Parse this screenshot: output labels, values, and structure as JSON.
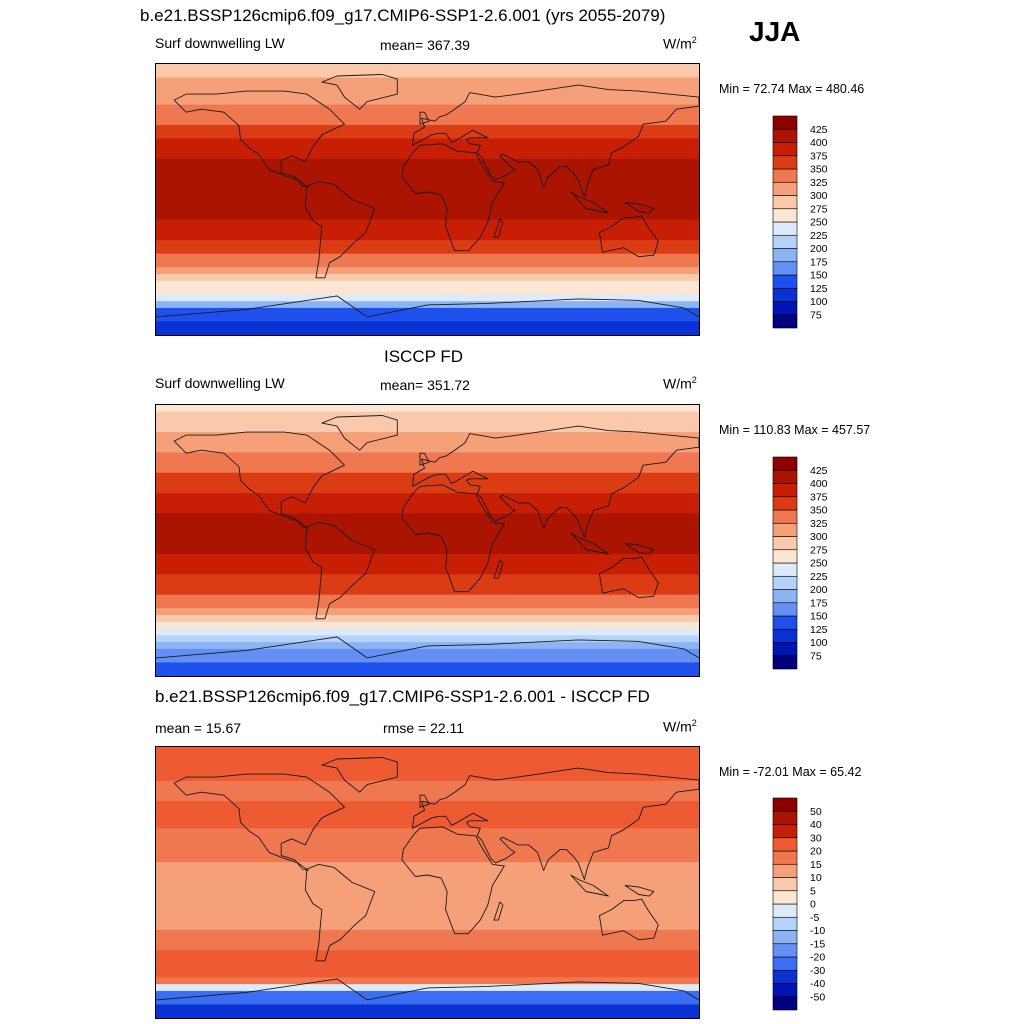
{
  "figure": {
    "title": "b.e21.BSSP126cmip6.f09_g17.CMIP6-SSP1-2.6.001 (yrs 2055-2079)",
    "season": "JJA"
  },
  "colors": {
    "abs_scale": [
      "#000080",
      "#0014b4",
      "#0a32d2",
      "#1e50eb",
      "#3c6ef5",
      "#6490f5",
      "#8cb4f5",
      "#b4d2fa",
      "#dceafa",
      "#fae6d2",
      "#fac8aa",
      "#f5a078",
      "#f07850",
      "#ee5a32",
      "#dc3c14",
      "#c81e05",
      "#aa1400",
      "#8c0000"
    ],
    "diff_scale": [
      "#000080",
      "#0014b4",
      "#0a32d2",
      "#1e50eb",
      "#3c6ef5",
      "#6490f5",
      "#8cb4f5",
      "#b4d2fa",
      "#dceafa",
      "#ffffff",
      "#fae6d2",
      "#fac8aa",
      "#f5a078",
      "#f07850",
      "#ee5a32",
      "#dc3c14",
      "#c81e05",
      "#aa1400",
      "#8c0000"
    ]
  },
  "chart_data": [
    {
      "type": "heatmap",
      "panel": "model",
      "variable": "Surf downwelling LW",
      "mean_label": "mean= 367.39",
      "units": "W/m",
      "units_sup": "2",
      "minmax_label": "Min =  72.74 Max = 480.46",
      "min": 72.74,
      "max": 480.46,
      "colorbar_levels": [
        75,
        100,
        125,
        150,
        175,
        200,
        225,
        250,
        275,
        300,
        325,
        350,
        375,
        400,
        425
      ],
      "zonal_profile": [
        {
          "lat": 90,
          "value": 290
        },
        {
          "lat": 75,
          "value": 310
        },
        {
          "lat": 60,
          "value": 330
        },
        {
          "lat": 45,
          "value": 360
        },
        {
          "lat": 30,
          "value": 395
        },
        {
          "lat": 15,
          "value": 425
        },
        {
          "lat": 0,
          "value": 420
        },
        {
          "lat": -15,
          "value": 395
        },
        {
          "lat": -30,
          "value": 370
        },
        {
          "lat": -45,
          "value": 330
        },
        {
          "lat": -55,
          "value": 280
        },
        {
          "lat": -65,
          "value": 230
        },
        {
          "lat": -75,
          "value": 140
        },
        {
          "lat": -90,
          "value": 100
        }
      ]
    },
    {
      "type": "heatmap",
      "panel": "obs",
      "panel_title": "ISCCP FD",
      "variable": "Surf downwelling LW",
      "mean_label": "mean= 351.72",
      "units": "W/m",
      "units_sup": "2",
      "minmax_label": "Min = 110.83 Max = 457.57",
      "min": 110.83,
      "max": 457.57,
      "colorbar_levels": [
        75,
        100,
        125,
        150,
        175,
        200,
        225,
        250,
        275,
        300,
        325,
        350,
        375,
        400,
        425
      ],
      "zonal_profile": [
        {
          "lat": 90,
          "value": 270
        },
        {
          "lat": 75,
          "value": 290
        },
        {
          "lat": 60,
          "value": 320
        },
        {
          "lat": 45,
          "value": 350
        },
        {
          "lat": 30,
          "value": 380
        },
        {
          "lat": 15,
          "value": 410
        },
        {
          "lat": 0,
          "value": 415
        },
        {
          "lat": -15,
          "value": 385
        },
        {
          "lat": -30,
          "value": 360
        },
        {
          "lat": -45,
          "value": 320
        },
        {
          "lat": -55,
          "value": 270
        },
        {
          "lat": -65,
          "value": 220
        },
        {
          "lat": -75,
          "value": 160
        },
        {
          "lat": -90,
          "value": 130
        }
      ]
    },
    {
      "type": "heatmap",
      "panel": "diff",
      "panel_title": "b.e21.BSSP126cmip6.f09_g17.CMIP6-SSP1-2.6.001 - ISCCP FD",
      "mean_label": "mean =  15.67",
      "rmse_label": "rmse =  22.11",
      "units": "W/m",
      "units_sup": "2",
      "minmax_label": "Min = -72.01 Max =  65.42",
      "min": -72.01,
      "max": 65.42,
      "colorbar_levels": [
        -50,
        -40,
        -30,
        -20,
        -15,
        -10,
        -5,
        0,
        5,
        10,
        15,
        20,
        30,
        40,
        50
      ],
      "zonal_profile": [
        {
          "lat": 90,
          "value": 22
        },
        {
          "lat": 75,
          "value": 22
        },
        {
          "lat": 60,
          "value": 18
        },
        {
          "lat": 45,
          "value": 22
        },
        {
          "lat": 30,
          "value": 18
        },
        {
          "lat": 15,
          "value": 15
        },
        {
          "lat": 0,
          "value": 12
        },
        {
          "lat": -15,
          "value": 12
        },
        {
          "lat": -30,
          "value": 15
        },
        {
          "lat": -45,
          "value": 20
        },
        {
          "lat": -55,
          "value": 25
        },
        {
          "lat": -65,
          "value": 18
        },
        {
          "lat": -75,
          "value": -25
        },
        {
          "lat": -90,
          "value": -35
        }
      ]
    }
  ]
}
